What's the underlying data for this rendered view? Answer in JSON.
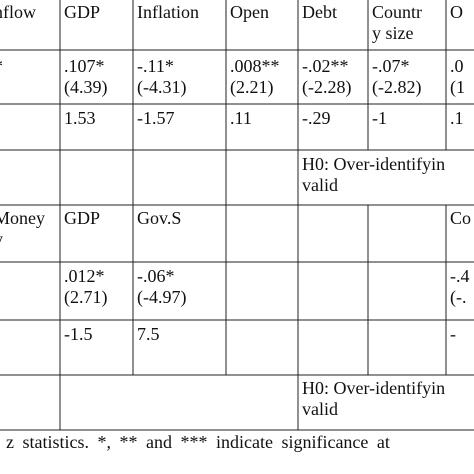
{
  "table1": {
    "header": [
      "nflow",
      "GDP",
      "Inflation",
      "Open",
      "Debt",
      "Countr\ny size",
      "O"
    ],
    "rows": [
      [
        "*",
        ".107*\n(4.39)",
        "-.11*\n(-4.31)",
        ".008**\n(2.21)",
        "-.02**\n(-2.28)",
        "-.07*\n(-2.82)",
        ".0\n(1"
      ],
      [
        null,
        "1.53",
        "-1.57",
        ".11",
        "-.29",
        "-1",
        ".1"
      ]
    ],
    "note": "H0:  Over-identifyin\nvalid"
  },
  "table2": {
    "header": [
      "Money\ny",
      "GDP",
      "Gov.S",
      null,
      null,
      null,
      "Co"
    ],
    "rows": [
      [
        ")",
        ".012*\n(2.71)",
        "-.06*\n(-4.97)",
        null,
        null,
        null,
        "-.4\n(-."
      ],
      [
        null,
        "-1.5",
        "7.5",
        null,
        null,
        null,
        "-"
      ]
    ],
    "note": "H0:  Over-identifyin\nvalid"
  },
  "footnote": "z statistics. *, ** and *** indicate significance at"
}
